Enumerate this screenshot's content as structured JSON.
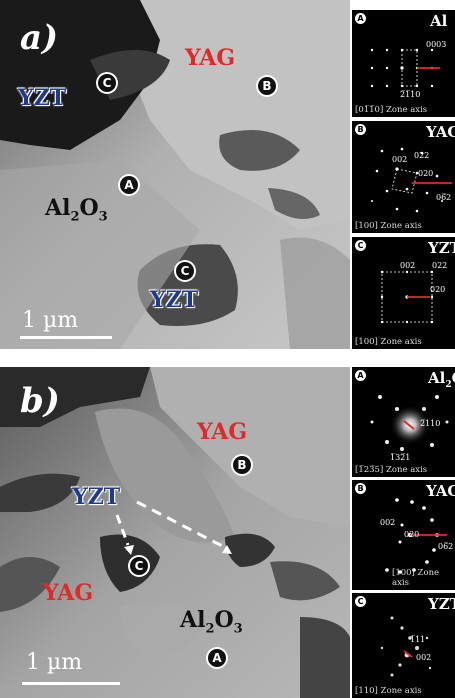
{
  "panel_a": {
    "label": "a)",
    "phases": {
      "yzt_top": "YZT",
      "yag": "YAG",
      "al2o3_main": "Al",
      "al2o3_sub2": "2",
      "al2o3_o": "O",
      "al2o3_sub3": "3",
      "yzt_bottom": "YZT"
    },
    "markers": {
      "c1": "C",
      "b": "B",
      "a": "A",
      "c2": "C"
    },
    "scale": "1 µm"
  },
  "panel_b": {
    "label": "b)",
    "phases": {
      "yag_top": "YAG",
      "yzt": "YZT",
      "yag_left": "YAG",
      "al2o3_main": "Al",
      "al2o3_sub2": "2",
      "al2o3_o": "O",
      "al2o3_sub3": "3"
    },
    "markers": {
      "b": "B",
      "c": "C",
      "a": "A"
    },
    "scale": "1 µm"
  },
  "sad_a": [
    {
      "marker": "A",
      "title": "Al",
      "zone": "[01̅1̅0] Zone axis",
      "indices": [
        "0003",
        "2̅1̅10"
      ]
    },
    {
      "marker": "B",
      "title": "YAG",
      "zone": "[100] Zone axis",
      "indices": [
        "002",
        "022",
        "020",
        "06̅2"
      ]
    },
    {
      "marker": "C",
      "title": "YZT",
      "zone": "[100] Zone axis",
      "indices": [
        "002",
        "022",
        "020"
      ]
    }
  ],
  "sad_b": [
    {
      "marker": "A",
      "title": "Al",
      "sub": "2",
      "title_rest": "O",
      "zone": "[1̅23̅5] Zone axis",
      "indices": [
        "2̅110",
        "1̅32̅1"
      ]
    },
    {
      "marker": "B",
      "title": "YAG",
      "zone": "[100] Zone axis",
      "indices": [
        "002",
        "020",
        "06̅2"
      ]
    },
    {
      "marker": "C",
      "title": "YZT",
      "zone": "[110] Zone axis",
      "indices": [
        "1̅11",
        "002"
      ]
    }
  ]
}
